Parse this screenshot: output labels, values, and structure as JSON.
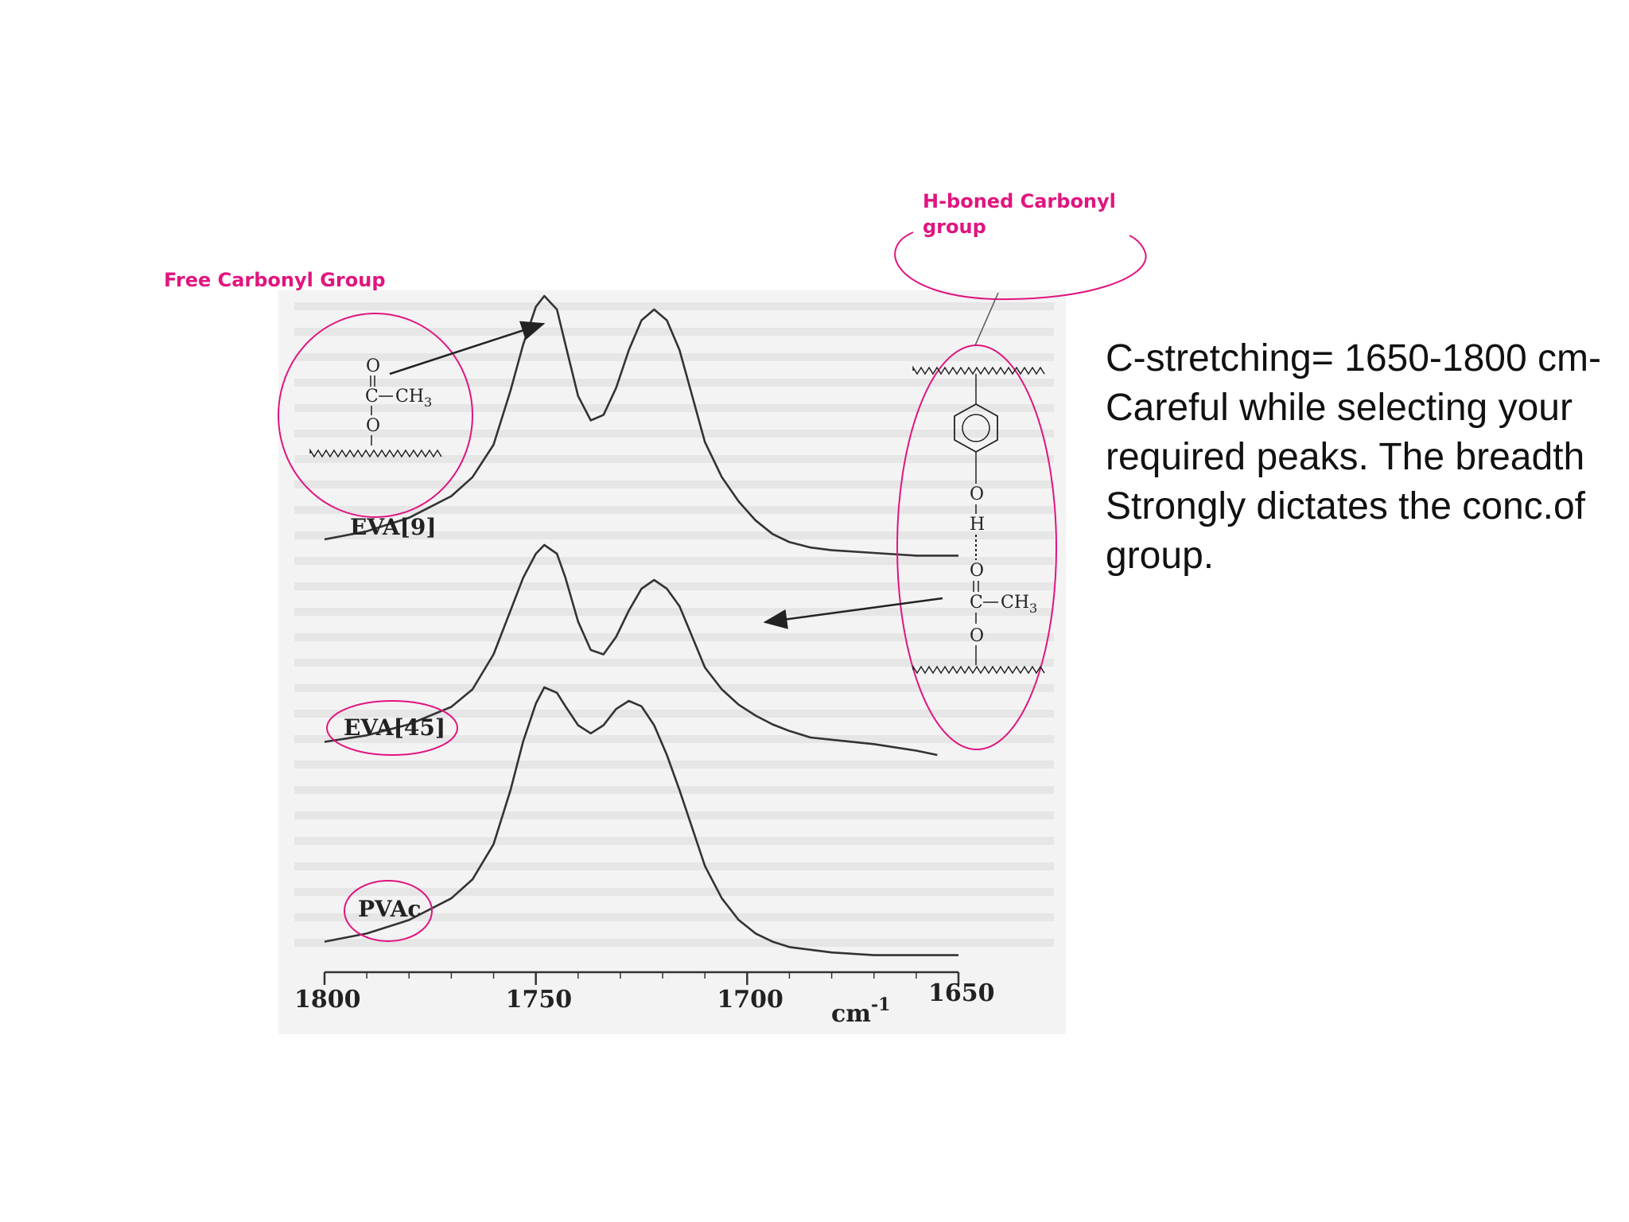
{
  "annotations": {
    "free_label": "Free Carbonyl Group",
    "hbond_label_lines": [
      "H-boned Carbonyl",
      "group"
    ]
  },
  "notes": {
    "lines": [
      "C-stretching= 1650-1800 cm-",
      "Careful while selecting your",
      "required peaks. The breadth",
      "Strongly dictates the conc.of",
      "group."
    ]
  },
  "colors": {
    "annotation": "#e0157f",
    "trace": "#333333",
    "scan_bg": "#f3f3f3"
  },
  "chart_data": {
    "type": "line",
    "title": "",
    "xlabel": "cm-1",
    "ylabel": "",
    "xlim": [
      1800,
      1650
    ],
    "x_ticks": [
      1800,
      1750,
      1700,
      1650
    ],
    "y_axis_shown": false,
    "series": [
      {
        "name": "EVA[9]",
        "x": [
          1800,
          1790,
          1780,
          1770,
          1765,
          1760,
          1756,
          1753,
          1750,
          1748,
          1745,
          1743,
          1740,
          1737,
          1734,
          1731,
          1728,
          1725,
          1722,
          1719,
          1716,
          1713,
          1710,
          1706,
          1702,
          1698,
          1694,
          1690,
          1685,
          1680,
          1670,
          1660,
          1650
        ],
        "y": [
          0.1,
          0.13,
          0.18,
          0.26,
          0.33,
          0.45,
          0.65,
          0.82,
          0.96,
          1.0,
          0.95,
          0.82,
          0.63,
          0.54,
          0.56,
          0.66,
          0.8,
          0.91,
          0.95,
          0.91,
          0.8,
          0.63,
          0.46,
          0.33,
          0.24,
          0.17,
          0.12,
          0.09,
          0.07,
          0.06,
          0.05,
          0.04,
          0.04
        ]
      },
      {
        "name": "EVA[45]",
        "x": [
          1800,
          1790,
          1780,
          1770,
          1765,
          1760,
          1756,
          1753,
          1750,
          1748,
          1745,
          1743,
          1740,
          1737,
          1734,
          1731,
          1728,
          1725,
          1722,
          1719,
          1716,
          1713,
          1710,
          1706,
          1702,
          1698,
          1694,
          1690,
          1685,
          1680,
          1670,
          1660,
          1655
        ],
        "y": [
          0.1,
          0.13,
          0.18,
          0.26,
          0.34,
          0.5,
          0.7,
          0.85,
          0.96,
          1.0,
          0.96,
          0.85,
          0.65,
          0.52,
          0.5,
          0.58,
          0.7,
          0.8,
          0.84,
          0.8,
          0.72,
          0.58,
          0.44,
          0.34,
          0.27,
          0.22,
          0.18,
          0.15,
          0.12,
          0.11,
          0.09,
          0.06,
          0.04
        ]
      },
      {
        "name": "PVAc",
        "x": [
          1800,
          1790,
          1780,
          1770,
          1765,
          1760,
          1756,
          1753,
          1750,
          1748,
          1745,
          1743,
          1740,
          1737,
          1734,
          1731,
          1728,
          1725,
          1722,
          1719,
          1716,
          1713,
          1710,
          1706,
          1702,
          1698,
          1694,
          1690,
          1685,
          1680,
          1670,
          1660,
          1650
        ],
        "y": [
          0.06,
          0.09,
          0.14,
          0.22,
          0.29,
          0.42,
          0.62,
          0.8,
          0.94,
          1.0,
          0.98,
          0.93,
          0.86,
          0.83,
          0.86,
          0.92,
          0.95,
          0.93,
          0.86,
          0.75,
          0.62,
          0.48,
          0.34,
          0.22,
          0.14,
          0.09,
          0.06,
          0.04,
          0.03,
          0.02,
          0.01,
          0.01,
          0.01
        ]
      }
    ]
  }
}
